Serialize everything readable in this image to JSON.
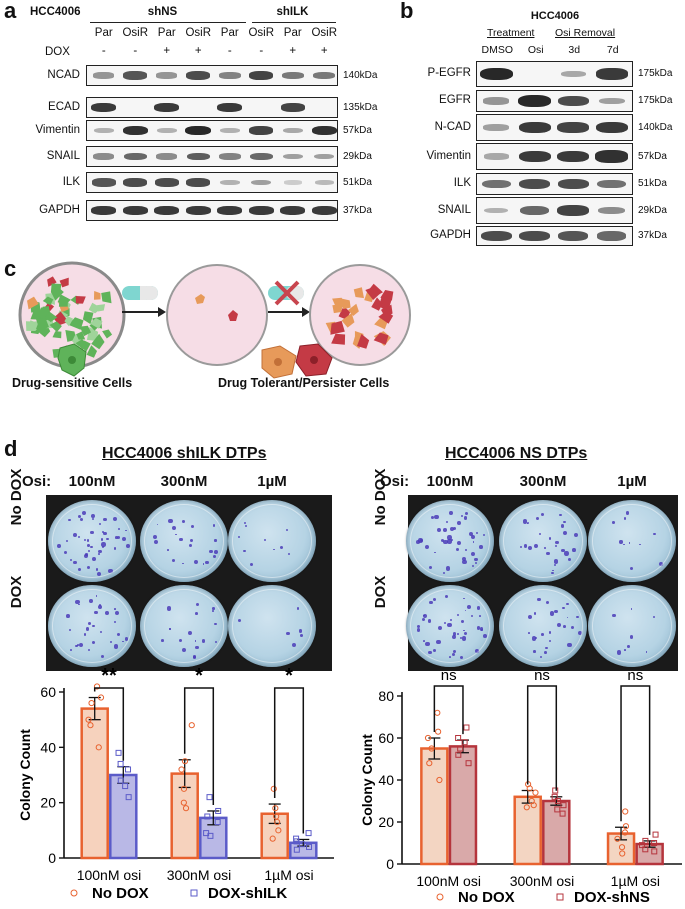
{
  "panel_a": {
    "letter": "a",
    "cell_line": "HCC4006",
    "groups": [
      "shNS",
      "shILK"
    ],
    "lanes": [
      "Par",
      "OsiR",
      "Par",
      "OsiR",
      "Par",
      "OsiR",
      "Par",
      "OsiR"
    ],
    "dox_label": "DOX",
    "dox": [
      "-",
      "-",
      "+",
      "+",
      "-",
      "-",
      "+",
      "+"
    ],
    "rows": [
      {
        "name": "NCAD",
        "kda": "140kDa",
        "levels": [
          0.35,
          0.7,
          0.35,
          0.75,
          0.45,
          0.8,
          0.5,
          0.5
        ]
      },
      {
        "name": "ECAD",
        "kda": "135kDa",
        "levels": [
          0.85,
          0,
          0.85,
          0,
          0.85,
          0,
          0.8,
          0
        ]
      },
      {
        "name": "Vimentin",
        "kda": "57kDa",
        "levels": [
          0.2,
          0.9,
          0.2,
          0.95,
          0.2,
          0.8,
          0.25,
          0.9
        ]
      },
      {
        "name": "SNAIL",
        "kda": "29kDa",
        "levels": [
          0.4,
          0.6,
          0.4,
          0.65,
          0.45,
          0.6,
          0.3,
          0.3
        ]
      },
      {
        "name": "ILK",
        "kda": "51kDa",
        "levels": [
          0.7,
          0.75,
          0.75,
          0.75,
          0.2,
          0.3,
          0.05,
          0.15
        ]
      },
      {
        "name": "GAPDH",
        "kda": "37kDa",
        "levels": [
          0.85,
          0.85,
          0.85,
          0.85,
          0.85,
          0.85,
          0.85,
          0.85
        ]
      }
    ]
  },
  "panel_b": {
    "letter": "b",
    "cell_line": "HCC4006",
    "treatment_label": "Treatment",
    "removal_label": "Osi Removal",
    "lanes": [
      "DMSO",
      "Osi",
      "3d",
      "7d"
    ],
    "rows": [
      {
        "name": "P-EGFR",
        "kda": "175kDa",
        "levels": [
          0.95,
          0,
          0.25,
          0.85
        ]
      },
      {
        "name": "EGFR",
        "kda": "175kDa",
        "levels": [
          0.35,
          0.95,
          0.75,
          0.3
        ]
      },
      {
        "name": "N-CAD",
        "kda": "140kDa",
        "levels": [
          0.3,
          0.85,
          0.8,
          0.85
        ]
      },
      {
        "name": "Vimentin",
        "kda": "57kDa",
        "levels": [
          0.25,
          0.85,
          0.85,
          0.9
        ]
      },
      {
        "name": "ILK",
        "kda": "51kDa",
        "levels": [
          0.55,
          0.75,
          0.75,
          0.55
        ]
      },
      {
        "name": "SNAIL",
        "kda": "29kDa",
        "levels": [
          0.2,
          0.6,
          0.8,
          0.4
        ]
      },
      {
        "name": "GAPDH",
        "kda": "37kDa",
        "levels": [
          0.75,
          0.75,
          0.7,
          0.6
        ]
      }
    ]
  },
  "panel_c": {
    "letter": "c",
    "sensitive_label": "Drug-sensitive Cells",
    "tolerant_label": "Drug Tolerant/Persister Cells"
  },
  "panel_d": {
    "letter": "d",
    "osi_label": "Osi:",
    "left_title": "HCC4006 shILK DTPs",
    "right_title": "HCC4006 NS DTPs",
    "doses": [
      "100nM",
      "300nM",
      "1µM"
    ],
    "row_labels": [
      "No DOX",
      "DOX"
    ],
    "colors": {
      "no_dox": "#e8622f",
      "dox_shilk": "#5b5bc8",
      "dox_shns": "#b5343c",
      "no_dox_fill": "#f6d2bd",
      "dox_shilk_fill": "#b9b8e6",
      "dox_shns_fill": "#d9a9a9",
      "no_dox_fill_right": "#f3d5c2"
    }
  },
  "chart_data": [
    {
      "type": "bar",
      "ylabel": "Colony Count",
      "ylim": [
        0,
        60
      ],
      "yticks": [
        0,
        20,
        40,
        60
      ],
      "categories": [
        "100nM osi",
        "300nM osi",
        "1µM osi"
      ],
      "series": [
        {
          "name": "No DOX",
          "values": [
            54,
            30.5,
            16
          ],
          "errors": [
            4,
            5,
            3.5
          ],
          "points": [
            [
              62,
              58,
              56,
              50,
              48,
              40
            ],
            [
              48,
              35,
              32,
              25,
              20,
              18
            ],
            [
              25,
              18,
              15,
              13,
              10,
              7
            ]
          ]
        },
        {
          "name": "DOX-shILK",
          "values": [
            30,
            14.5,
            5.5
          ],
          "errors": [
            3,
            2.5,
            1.2
          ],
          "points": [
            [
              38,
              34,
              32,
              28,
              26,
              22
            ],
            [
              22,
              17,
              15,
              13,
              9,
              8
            ],
            [
              9,
              7,
              6,
              5,
              4,
              3
            ]
          ]
        }
      ],
      "significance": [
        "**",
        "*",
        "*"
      ]
    },
    {
      "type": "bar",
      "ylabel": "Colony Count",
      "ylim": [
        0,
        80
      ],
      "yticks": [
        0,
        20,
        40,
        60,
        80
      ],
      "categories": [
        "100nM osi",
        "300nM osi",
        "1µM osi"
      ],
      "series": [
        {
          "name": "No DOX",
          "values": [
            55,
            32,
            14.5
          ],
          "errors": [
            5,
            3,
            3
          ],
          "points": [
            [
              72,
              63,
              60,
              55,
              48,
              40
            ],
            [
              38,
              36,
              34,
              30,
              28,
              27
            ],
            [
              25,
              18,
              15,
              12,
              8,
              5
            ]
          ]
        },
        {
          "name": "DOX-shNS",
          "values": [
            56,
            30,
            9.5
          ],
          "errors": [
            3,
            2,
            1.5
          ],
          "points": [
            [
              65,
              60,
              58,
              55,
              52,
              48
            ],
            [
              35,
              32,
              30,
              28,
              26,
              24
            ],
            [
              14,
              11,
              10,
              9,
              7,
              6
            ]
          ]
        }
      ],
      "significance": [
        "ns",
        "ns",
        "ns"
      ]
    }
  ]
}
